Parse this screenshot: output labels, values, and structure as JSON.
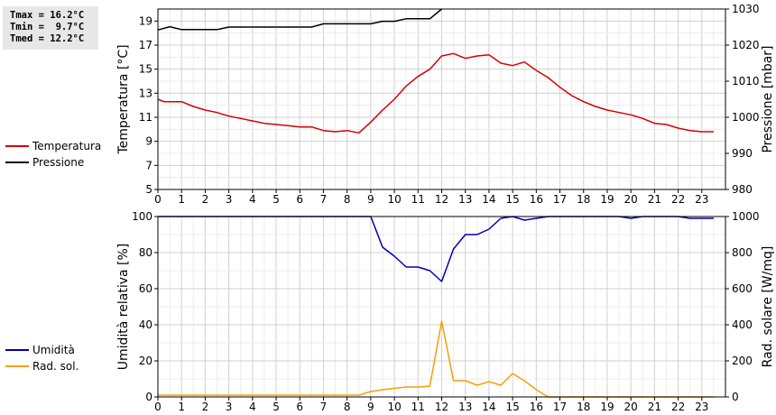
{
  "stats": [
    "Tmax = 16.2°C",
    "Tmin =  9.7°C",
    "Tmed = 12.2°C"
  ],
  "legend_top": [
    {
      "label": "Temperatura",
      "color": "#d40000"
    },
    {
      "label": "Pressione",
      "color": "#000000"
    }
  ],
  "legend_bottom": [
    {
      "label": "Umidità",
      "color": "#0000b4"
    },
    {
      "label": "Rad. sol.",
      "color": "#f5a000"
    }
  ],
  "chart_data": [
    {
      "type": "line",
      "ylabel": "Temperatura [°C]",
      "y2label": "Pressione [mbar]",
      "xlim": [
        0,
        24
      ],
      "ylim": [
        5,
        20
      ],
      "y2lim": [
        980,
        1030
      ],
      "xticks": [
        0,
        1,
        2,
        3,
        4,
        5,
        6,
        7,
        8,
        9,
        10,
        11,
        12,
        13,
        14,
        15,
        16,
        17,
        18,
        19,
        20,
        21,
        22,
        23
      ],
      "yticks": [
        5,
        7,
        9,
        11,
        13,
        15,
        17,
        19
      ],
      "y2ticks": [
        980,
        990,
        1000,
        1010,
        1020,
        1030
      ],
      "grid": true,
      "series": [
        {
          "name": "Temperatura",
          "axis": "left",
          "color": "#d40000",
          "x": [
            0,
            0.25,
            0.5,
            1,
            1.5,
            2,
            2.5,
            3,
            3.5,
            4,
            4.5,
            5,
            5.5,
            6,
            6.5,
            7,
            7.5,
            8,
            8.5,
            9,
            9.5,
            10,
            10.5,
            11,
            11.5,
            12,
            12.5,
            13,
            13.5,
            14,
            14.5,
            15,
            15.5,
            16,
            16.5,
            17,
            17.5,
            18,
            18.5,
            19,
            19.5,
            20,
            20.5,
            21,
            21.5,
            22,
            22.5,
            23,
            23.5
          ],
          "values": [
            12.5,
            12.3,
            12.3,
            12.3,
            11.9,
            11.6,
            11.4,
            11.1,
            10.9,
            10.7,
            10.5,
            10.4,
            10.3,
            10.2,
            10.2,
            9.9,
            9.8,
            9.9,
            9.7,
            10.6,
            11.6,
            12.5,
            13.6,
            14.4,
            15.0,
            16.1,
            16.3,
            15.9,
            16.1,
            16.2,
            15.5,
            15.3,
            15.6,
            14.9,
            14.3,
            13.5,
            12.8,
            12.3,
            11.9,
            11.6,
            11.4,
            11.2,
            10.9,
            10.5,
            10.4,
            10.1,
            9.9,
            9.8,
            9.8
          ]
        },
        {
          "name": "Pressione",
          "axis": "right",
          "color": "#000000",
          "x": [
            0,
            0.5,
            1,
            1.5,
            2,
            2.5,
            3,
            3.5,
            4,
            4.5,
            5,
            5.5,
            6,
            6.5,
            7,
            7.5,
            8,
            8.5,
            9,
            9.5,
            10,
            10.5,
            11,
            11.5,
            12
          ],
          "values": [
            1024.2,
            1025.1,
            1024.3,
            1024.3,
            1024.3,
            1024.3,
            1025.0,
            1025.0,
            1025.0,
            1025.0,
            1025.0,
            1025.0,
            1025.0,
            1025.0,
            1025.9,
            1025.9,
            1025.9,
            1025.9,
            1025.9,
            1026.6,
            1026.6,
            1027.3,
            1027.3,
            1027.3,
            1030.0
          ]
        }
      ]
    },
    {
      "type": "line",
      "ylabel": "Umidità relativa [%]",
      "y2label": "Rad. solare [W/mq]",
      "xlim": [
        0,
        24
      ],
      "ylim": [
        0,
        100
      ],
      "y2lim": [
        0,
        1000
      ],
      "xticks": [
        0,
        1,
        2,
        3,
        4,
        5,
        6,
        7,
        8,
        9,
        10,
        11,
        12,
        13,
        14,
        15,
        16,
        17,
        18,
        19,
        20,
        21,
        22,
        23
      ],
      "yticks": [
        0,
        20,
        40,
        60,
        80,
        100
      ],
      "y2ticks": [
        0,
        200,
        400,
        600,
        800,
        1000
      ],
      "grid": true,
      "series": [
        {
          "name": "Umidità",
          "axis": "left",
          "color": "#0000b4",
          "x": [
            0,
            1,
            2,
            3,
            4,
            5,
            6,
            7,
            8,
            9,
            9.5,
            10,
            10.5,
            11,
            11.5,
            12,
            12.5,
            13,
            13.5,
            14,
            14.5,
            15,
            15.5,
            16,
            16.5,
            17,
            18,
            19,
            19.5,
            20,
            20.5,
            21,
            22,
            22.5,
            23,
            23.5
          ],
          "values": [
            100,
            100,
            100,
            100,
            100,
            100,
            100,
            100,
            100,
            100,
            83,
            78,
            72,
            72,
            70,
            64,
            82,
            90,
            90,
            93,
            99,
            100,
            98,
            99,
            100,
            100,
            100,
            100,
            100,
            99,
            100,
            100,
            100,
            99,
            99,
            99
          ]
        },
        {
          "name": "Rad. sol.",
          "axis": "right",
          "color": "#f5a000",
          "x": [
            0,
            1,
            2,
            3,
            4,
            5,
            6,
            7,
            8,
            8.5,
            9,
            9.5,
            10,
            10.5,
            11,
            11.5,
            12,
            12.5,
            13,
            13.5,
            14,
            14.5,
            15,
            15.5,
            16,
            16.5,
            17,
            18,
            19,
            20,
            21,
            22,
            23,
            23.5
          ],
          "values": [
            10,
            10,
            10,
            10,
            10,
            10,
            10,
            10,
            10,
            10,
            30,
            40,
            48,
            55,
            55,
            60,
            420,
            90,
            90,
            65,
            85,
            65,
            130,
            90,
            40,
            0,
            0,
            0,
            0,
            0,
            0,
            0,
            0,
            0
          ]
        }
      ]
    }
  ]
}
